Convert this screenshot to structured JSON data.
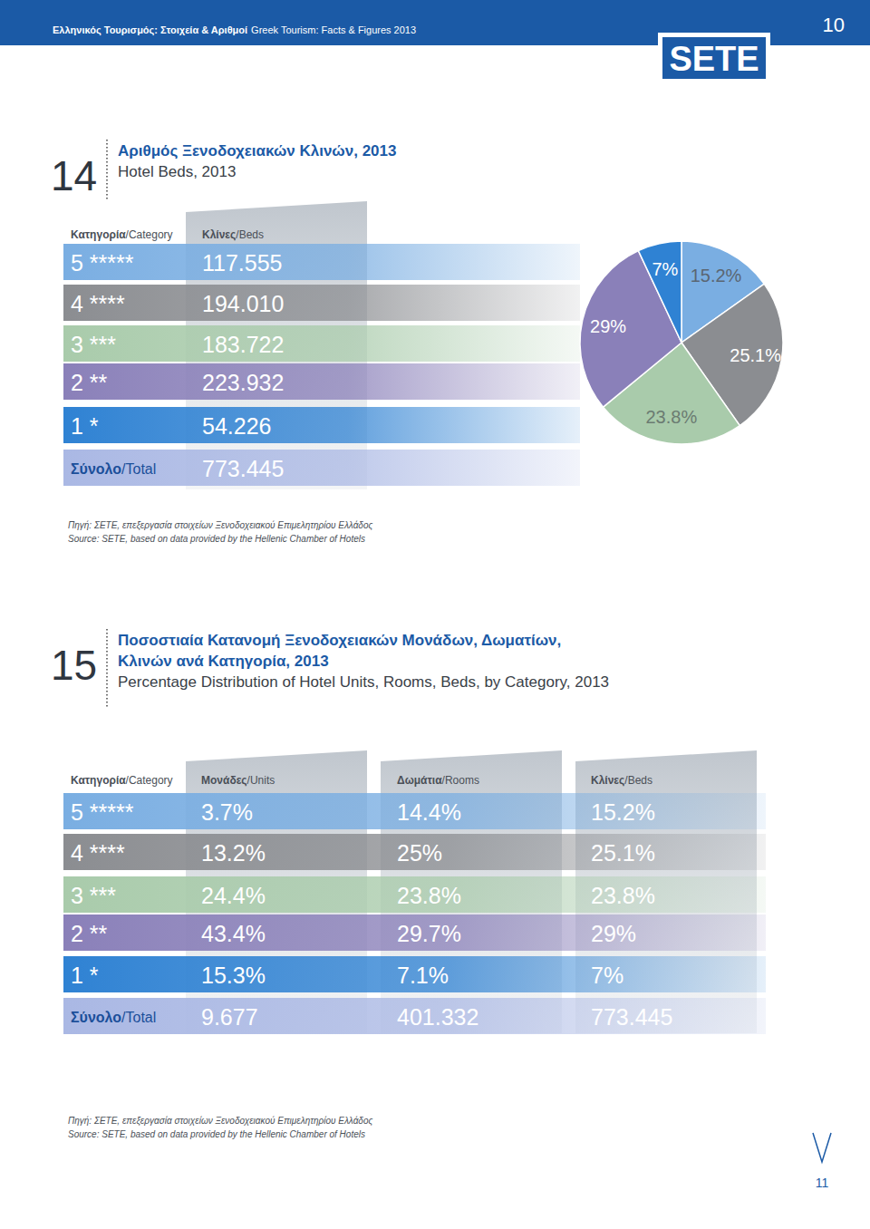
{
  "header": {
    "title_el": "Ελληνικός Τουρισμός: Στοιχεία & Αριθμοί",
    "title_en": "Greek Tourism: Facts & Figures 2013",
    "page": "10",
    "logo": "SETE"
  },
  "section14": {
    "number": "14",
    "title_el": "Αριθμός Ξενοδοχειακών Κλινών, 2013",
    "title_en": "Hotel Beds, 2013",
    "table": {
      "columns": [
        "Κατηγορία/Category",
        "Κλίνες/Beds"
      ],
      "rows": [
        [
          "5 *****",
          "117.555"
        ],
        [
          "4 ****",
          "194.010"
        ],
        [
          "3 ***",
          "183.722"
        ],
        [
          "2 **",
          "223.932"
        ],
        [
          "1 *",
          "54.226"
        ]
      ],
      "total": [
        "Σύνολο/Total",
        "773.445"
      ]
    },
    "source_el": "Πηγή: ΣΕΤΕ, επεξεργασία στοιχείων Ξενοδοχειακού Επιμελητηρίου Ελλάδος",
    "source_en": "Source: SETE, based on data provided by the Hellenic Chamber of Hotels"
  },
  "chart_data": {
    "type": "pie",
    "values": [
      15.2,
      25.1,
      23.8,
      29,
      7
    ],
    "value_labels": [
      "15.2%",
      "25.1%",
      "23.8%",
      "29%",
      "7%"
    ],
    "colors": [
      "#7aaee2",
      "#8b8d91",
      "#a9cbab",
      "#8a80b9",
      "#2f82d3"
    ],
    "data_labels": true
  },
  "section15": {
    "number": "15",
    "title_el": [
      "Ποσοστιαία Κατανομή Ξενοδοχειακών Μονάδων, Δωματίων,",
      "Κλινών ανά Κατηγορία, 2013"
    ],
    "title_en": "Percentage Distribution of Hotel Units, Rooms, Beds, by Category, 2013",
    "table": {
      "columns": [
        "Κατηγορία/Category",
        "Μονάδες/Units",
        "Δωμάτια/Rooms",
        "Κλίνες/Beds"
      ],
      "rows": [
        [
          "5 *****",
          "3.7%",
          "14.4%",
          "15.2%"
        ],
        [
          "4 ****",
          "13.2%",
          "25%",
          "25.1%"
        ],
        [
          "3 ***",
          "24.4%",
          "23.8%",
          "23.8%"
        ],
        [
          "2 **",
          "43.4%",
          "29.7%",
          "29%"
        ],
        [
          "1 *",
          "15.3%",
          "7.1%",
          "7%"
        ]
      ],
      "total": [
        "Σύνολο/Total",
        "9.677",
        "401.332",
        "773.445"
      ]
    },
    "source_el": "Πηγή: ΣΕΤΕ, επεξεργασία στοιχείων Ξενοδοχειακού Επιμελητηρίου Ελλάδος",
    "source_en": "Source: SETE, based on data provided by the Hellenic Chamber of Hotels"
  },
  "footer": {
    "page": "11"
  }
}
